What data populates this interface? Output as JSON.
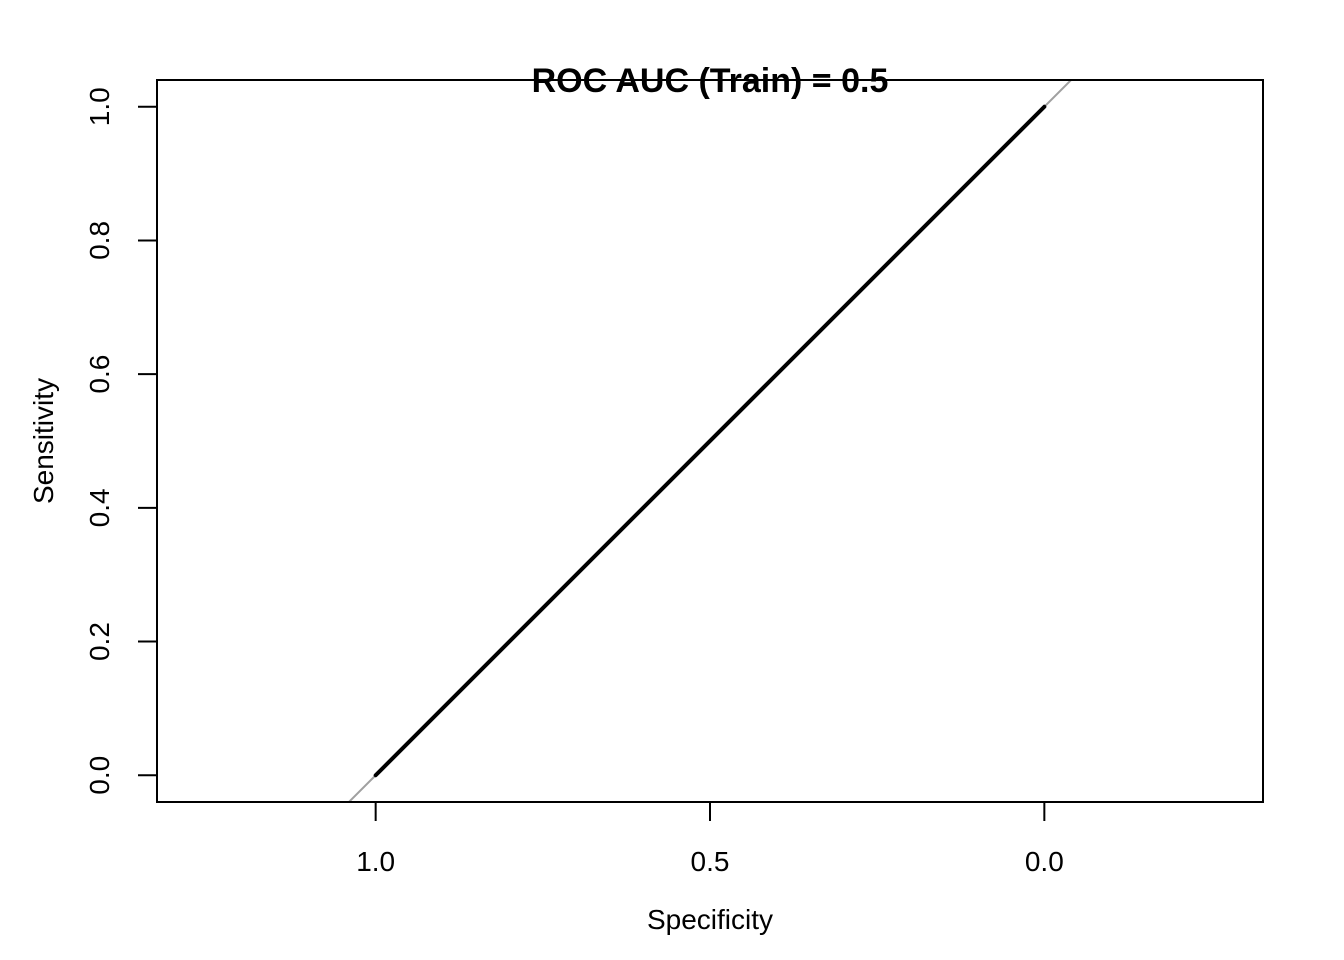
{
  "chart_data": {
    "type": "line",
    "title": "ROC AUC (Train) = 0.5",
    "xlabel": "Specificity",
    "ylabel": "Sensitivity",
    "x_reversed": true,
    "xlim": [
      1.327,
      -0.327
    ],
    "ylim": [
      -0.04,
      1.04
    ],
    "x_ticks": [
      1.0,
      0.5,
      0.0
    ],
    "x_tick_labels": [
      "1.0",
      "0.5",
      "0.0"
    ],
    "y_ticks": [
      0.0,
      0.2,
      0.4,
      0.6,
      0.8,
      1.0
    ],
    "y_tick_labels": [
      "0.0",
      "0.2",
      "0.4",
      "0.6",
      "0.8",
      "1.0"
    ],
    "grid": false,
    "reference_line": {
      "color": "#a0a0a0",
      "description_points": [
        [
          1.0,
          0.0
        ],
        [
          0.0,
          1.0
        ]
      ]
    },
    "series": [
      {
        "color": "#000000",
        "x": [
          1.0,
          0.0
        ],
        "y": [
          0.0,
          1.0
        ]
      }
    ]
  }
}
